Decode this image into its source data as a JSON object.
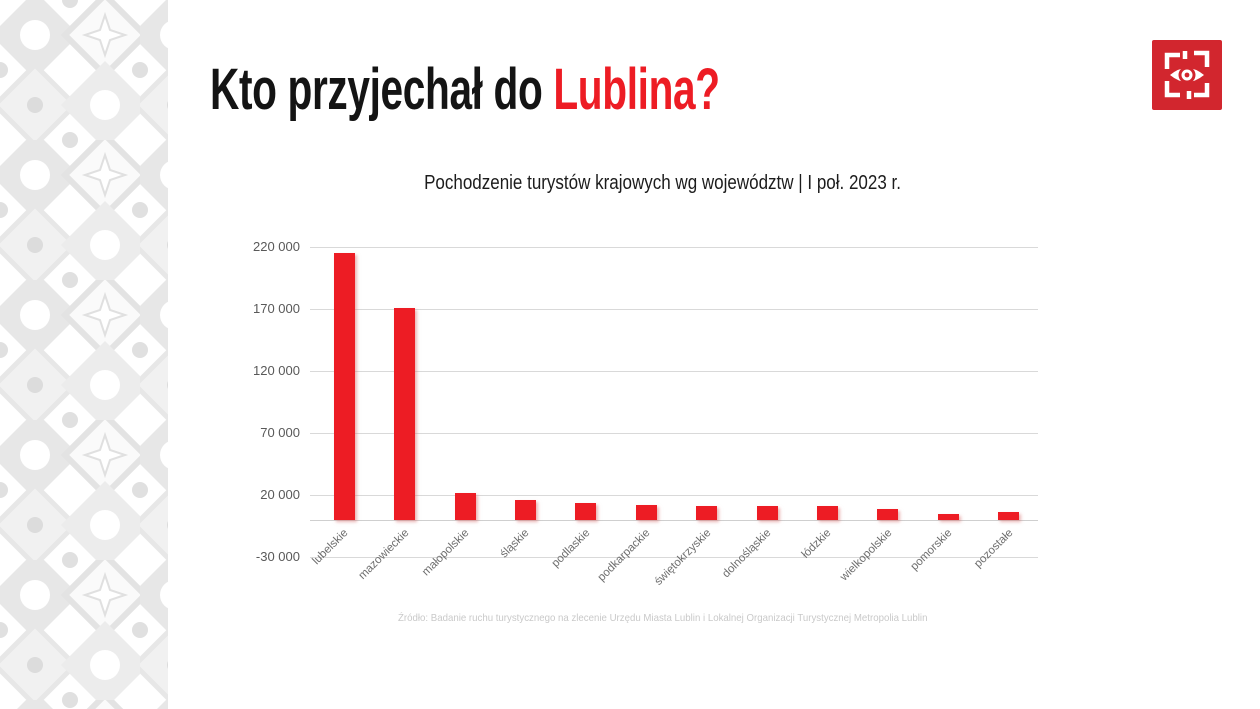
{
  "theme": {
    "accent_color": "#ed1c24",
    "logo_red": "#d2262e",
    "grid_color": "#d9d9d9",
    "tick_color": "#595959"
  },
  "header": {
    "title_black": "Kto przyjechał do ",
    "title_red": "Lublina?"
  },
  "logo": {
    "name": "lublin-eye-emblem"
  },
  "chart_data": {
    "type": "bar",
    "title": "Pochodzenie turystów krajowych wg województw | I poł. 2023 r.",
    "categories": [
      "lubelskie",
      "mazowieckie",
      "małopolskie",
      "śląskie",
      "podlaskie",
      "podkarpackie",
      "świętokrzyskie",
      "dolnośląskie",
      "łódzkie",
      "wielkopolskie",
      "pomorskie",
      "pozostałe"
    ],
    "values": [
      215000,
      171000,
      22000,
      16000,
      14000,
      12000,
      11500,
      11000,
      11000,
      9000,
      4500,
      6500
    ],
    "bar_color": "#ed1c24",
    "xlabel": "",
    "ylabel": "",
    "ylim": [
      -30000,
      220000
    ],
    "yticks": [
      220000,
      170000,
      120000,
      70000,
      20000,
      -30000
    ],
    "ytick_labels": [
      "220 000",
      "170 000",
      "120 000",
      "70 000",
      "20 000",
      "-30 000"
    ],
    "grid": true,
    "legend": null
  },
  "footer": {
    "source": "Źródło: Badanie ruchu turystycznego na zlecenie Urzędu Miasta Lublin i Lokalnej Organizacji Turystycznej Metropolia Lublin"
  }
}
